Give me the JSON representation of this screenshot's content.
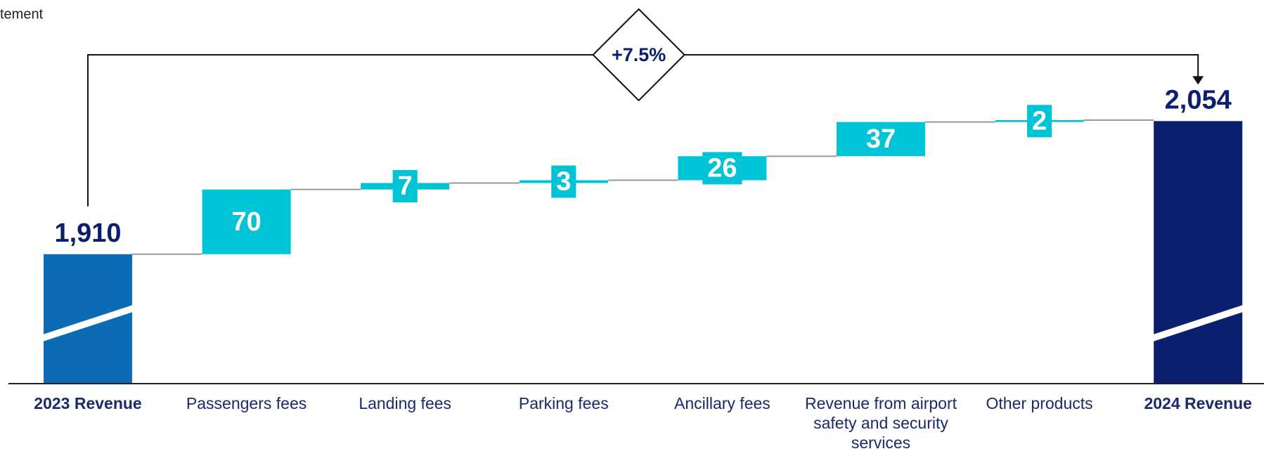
{
  "chart_data": {
    "type": "waterfall",
    "title": "tement",
    "categories": [
      "2023 Revenue",
      "Passengers fees",
      "Landing fees",
      "Parking fees",
      "Ancillary fees",
      "Revenue from airport safety and security services",
      "Other products",
      "2024 Revenue"
    ],
    "values": [
      1910,
      70,
      7,
      3,
      26,
      37,
      2,
      2054
    ],
    "value_labels": [
      "1,910",
      "70",
      "7",
      "3",
      "26",
      "37",
      "2",
      "2,054"
    ],
    "measures": [
      "total",
      "relative",
      "relative",
      "relative",
      "relative",
      "relative",
      "relative",
      "total"
    ],
    "colors": {
      "start": "#0b6cb5",
      "increase": "#00c4d6",
      "end": "#0a1f6e"
    },
    "ylim": [
      1770,
      2150
    ],
    "annotation": "+7.5%"
  }
}
